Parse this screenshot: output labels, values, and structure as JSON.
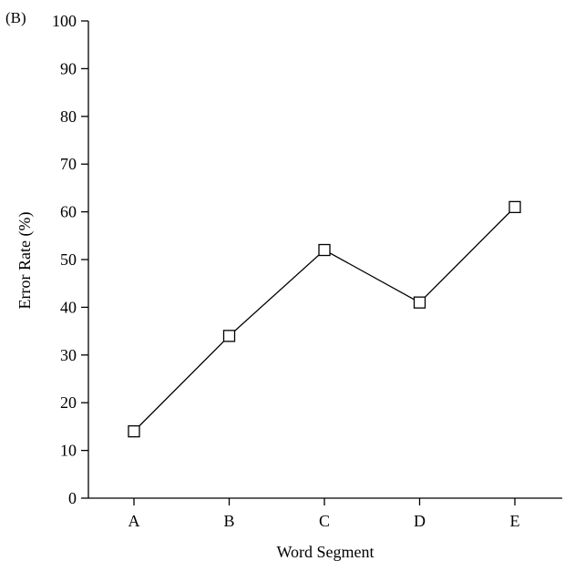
{
  "panel_label": "(B)",
  "chart_data": {
    "type": "line",
    "title": "",
    "xlabel": "Word Segment",
    "ylabel": "Error Rate (%)",
    "categories": [
      "A",
      "B",
      "C",
      "D",
      "E"
    ],
    "series": [
      {
        "values": [
          14,
          34,
          52,
          41,
          61
        ]
      }
    ],
    "ylim": [
      0,
      100
    ],
    "yticks": [
      0,
      10,
      20,
      30,
      40,
      50,
      60,
      70,
      80,
      90,
      100
    ],
    "marker": "open-square",
    "grid": false,
    "legend": "none"
  }
}
